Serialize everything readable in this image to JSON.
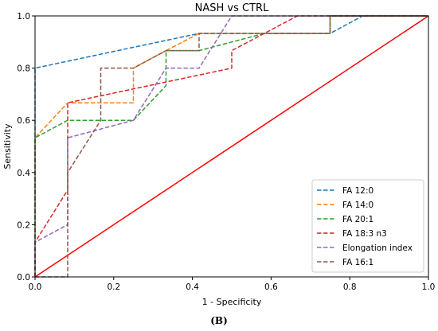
{
  "caption": "(B)",
  "chart_data": {
    "type": "line",
    "title": "NASH vs CTRL",
    "xlabel": "1 - Specificity",
    "ylabel": "Sensitivity",
    "xlim": [
      0,
      1
    ],
    "ylim": [
      0,
      1
    ],
    "xticks": [
      "0.0",
      "0.2",
      "0.4",
      "0.6",
      "0.8",
      "1.0"
    ],
    "yticks": [
      "0.0",
      "0.2",
      "0.4",
      "0.6",
      "0.8",
      "1.0"
    ],
    "grid": false,
    "legend_position": "lower-right",
    "reference_line": {
      "x": [
        0,
        1
      ],
      "y": [
        0,
        1
      ],
      "color": "#ff0000",
      "style": "solid"
    },
    "series": [
      {
        "name": "FA 12:0",
        "color": "#1f77b4",
        "style": "dashed",
        "x": [
          0,
          0,
          0.417,
          0.75,
          0.833,
          1.0
        ],
        "y": [
          0,
          0.8,
          0.933,
          0.933,
          1.0,
          1.0
        ]
      },
      {
        "name": "FA 14:0",
        "color": "#ff7f0e",
        "style": "dashed",
        "x": [
          0,
          0,
          0.083,
          0.083,
          0.25,
          0.25,
          0.333,
          0.417,
          0.75,
          0.75,
          1.0
        ],
        "y": [
          0,
          0.533,
          0.667,
          0.667,
          0.667,
          0.8,
          0.867,
          0.933,
          0.933,
          1.0,
          1.0
        ]
      },
      {
        "name": "FA 20:1",
        "color": "#2ca02c",
        "style": "dashed",
        "x": [
          0,
          0,
          0.083,
          0.083,
          0.25,
          0.333,
          0.333,
          0.417,
          0.583,
          0.75,
          0.75,
          1.0
        ],
        "y": [
          0,
          0.533,
          0.6,
          0.6,
          0.6,
          0.733,
          0.867,
          0.867,
          0.933,
          0.933,
          1.0,
          1.0
        ]
      },
      {
        "name": "FA 18:3 n3",
        "color": "#d62728",
        "style": "dashed",
        "x": [
          0,
          0,
          0.083,
          0.083,
          0.5,
          0.5,
          0.667,
          1.0
        ],
        "y": [
          0,
          0.133,
          0.333,
          0.667,
          0.8,
          0.867,
          1.0,
          1.0
        ]
      },
      {
        "name": "Elongation index",
        "color": "#9467bd",
        "style": "dashed",
        "x": [
          0,
          0,
          0.083,
          0.083,
          0.25,
          0.333,
          0.417,
          0.5,
          1.0
        ],
        "y": [
          0,
          0.133,
          0.2,
          0.533,
          0.6,
          0.8,
          0.8,
          1.0,
          1.0
        ]
      },
      {
        "name": "FA 16:1",
        "color": "#8c564b",
        "style": "dashed",
        "x": [
          0,
          0.083,
          0.083,
          0.167,
          0.167,
          0.25,
          0.25,
          0.333,
          0.417,
          0.417,
          0.75,
          0.75,
          1.0
        ],
        "y": [
          0,
          0,
          0.4,
          0.6,
          0.8,
          0.8,
          0.8,
          0.867,
          0.867,
          0.933,
          0.933,
          1.0,
          1.0
        ]
      }
    ]
  }
}
